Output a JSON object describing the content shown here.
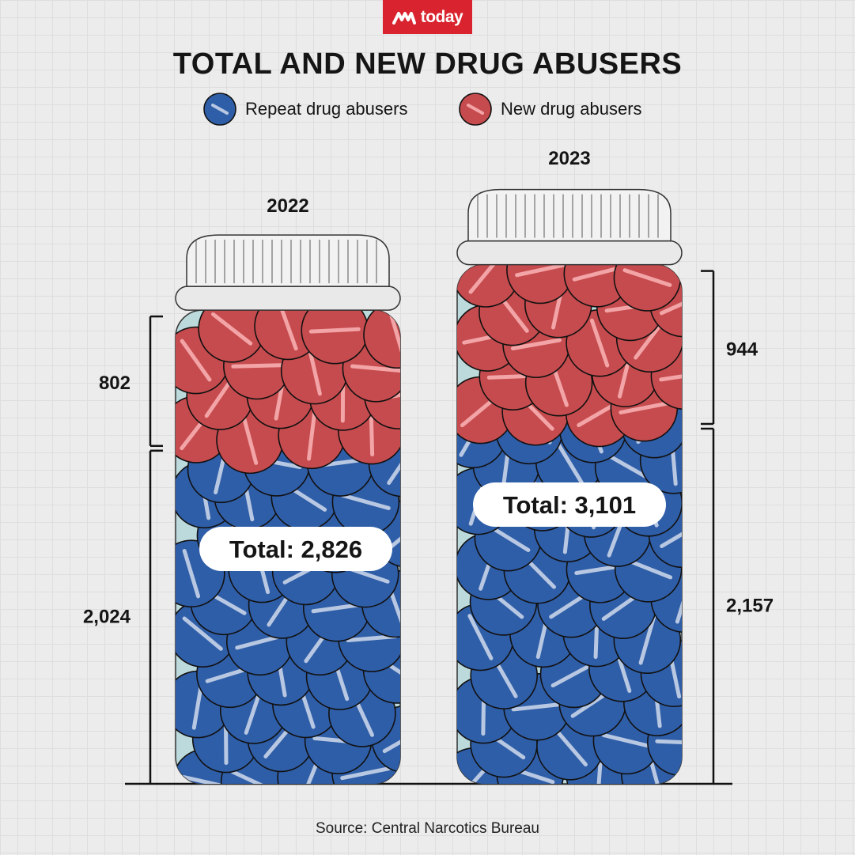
{
  "brand": {
    "logo_text": "today"
  },
  "title": "TOTAL AND NEW DRUG ABUSERS",
  "legend": {
    "repeat_label": "Repeat drug abusers",
    "new_label": "New drug abusers"
  },
  "colors": {
    "repeat": "#2f5ea8",
    "new": "#c64b4e",
    "jar_glass": "#bcd9dc",
    "brand_red": "#d9232e"
  },
  "source": "Source: Central Narcotics Bureau",
  "chart_data": {
    "type": "bar",
    "stacked": true,
    "categories": [
      "2022",
      "2023"
    ],
    "series": [
      {
        "name": "Repeat drug abusers",
        "values": [
          2024,
          2157
        ],
        "labels": [
          "2,024",
          "2,157"
        ]
      },
      {
        "name": "New drug abusers",
        "values": [
          802,
          944
        ],
        "labels": [
          "802",
          "944"
        ]
      }
    ],
    "totals": [
      2826,
      3101
    ],
    "total_labels": [
      "Total: 2,826",
      "Total: 3,101"
    ],
    "title": "TOTAL AND NEW DRUG ABUSERS",
    "legend": "top-center"
  }
}
